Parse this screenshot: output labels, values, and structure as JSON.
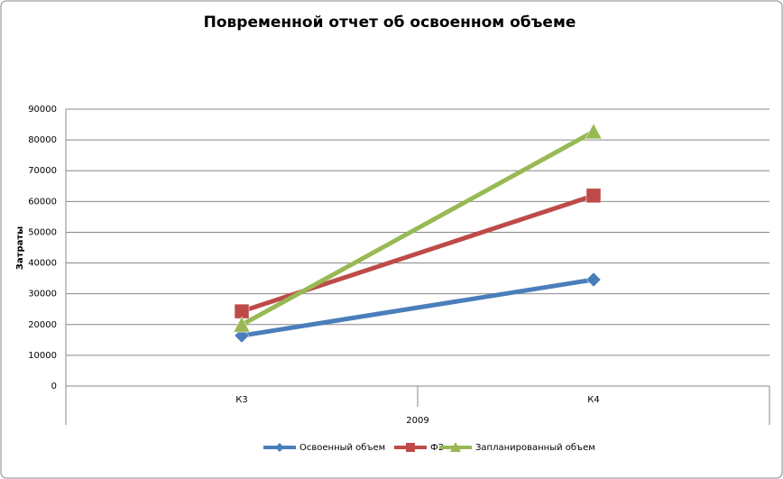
{
  "chart_data": {
    "type": "line",
    "title": "Повременной отчет об освоенном объеме",
    "y_label": "Затраты",
    "categories": [
      "К3",
      "К4"
    ],
    "category_group": "2009",
    "series": [
      {
        "name": "Освоенный объем",
        "color": "#4a7ebb",
        "marker": "diamond",
        "values": [
          16400,
          34600
        ]
      },
      {
        "name": "ФЗ",
        "color": "#be4b48",
        "marker": "square",
        "values": [
          24300,
          61900
        ]
      },
      {
        "name": "Запланированный объем",
        "color": "#98b954",
        "marker": "triangle",
        "values": [
          19900,
          82700
        ]
      }
    ],
    "ylim": [
      0,
      90000
    ],
    "yticks": [
      0,
      10000,
      20000,
      30000,
      40000,
      50000,
      60000,
      70000,
      80000,
      90000
    ],
    "grid": true,
    "legend": "bottom"
  }
}
